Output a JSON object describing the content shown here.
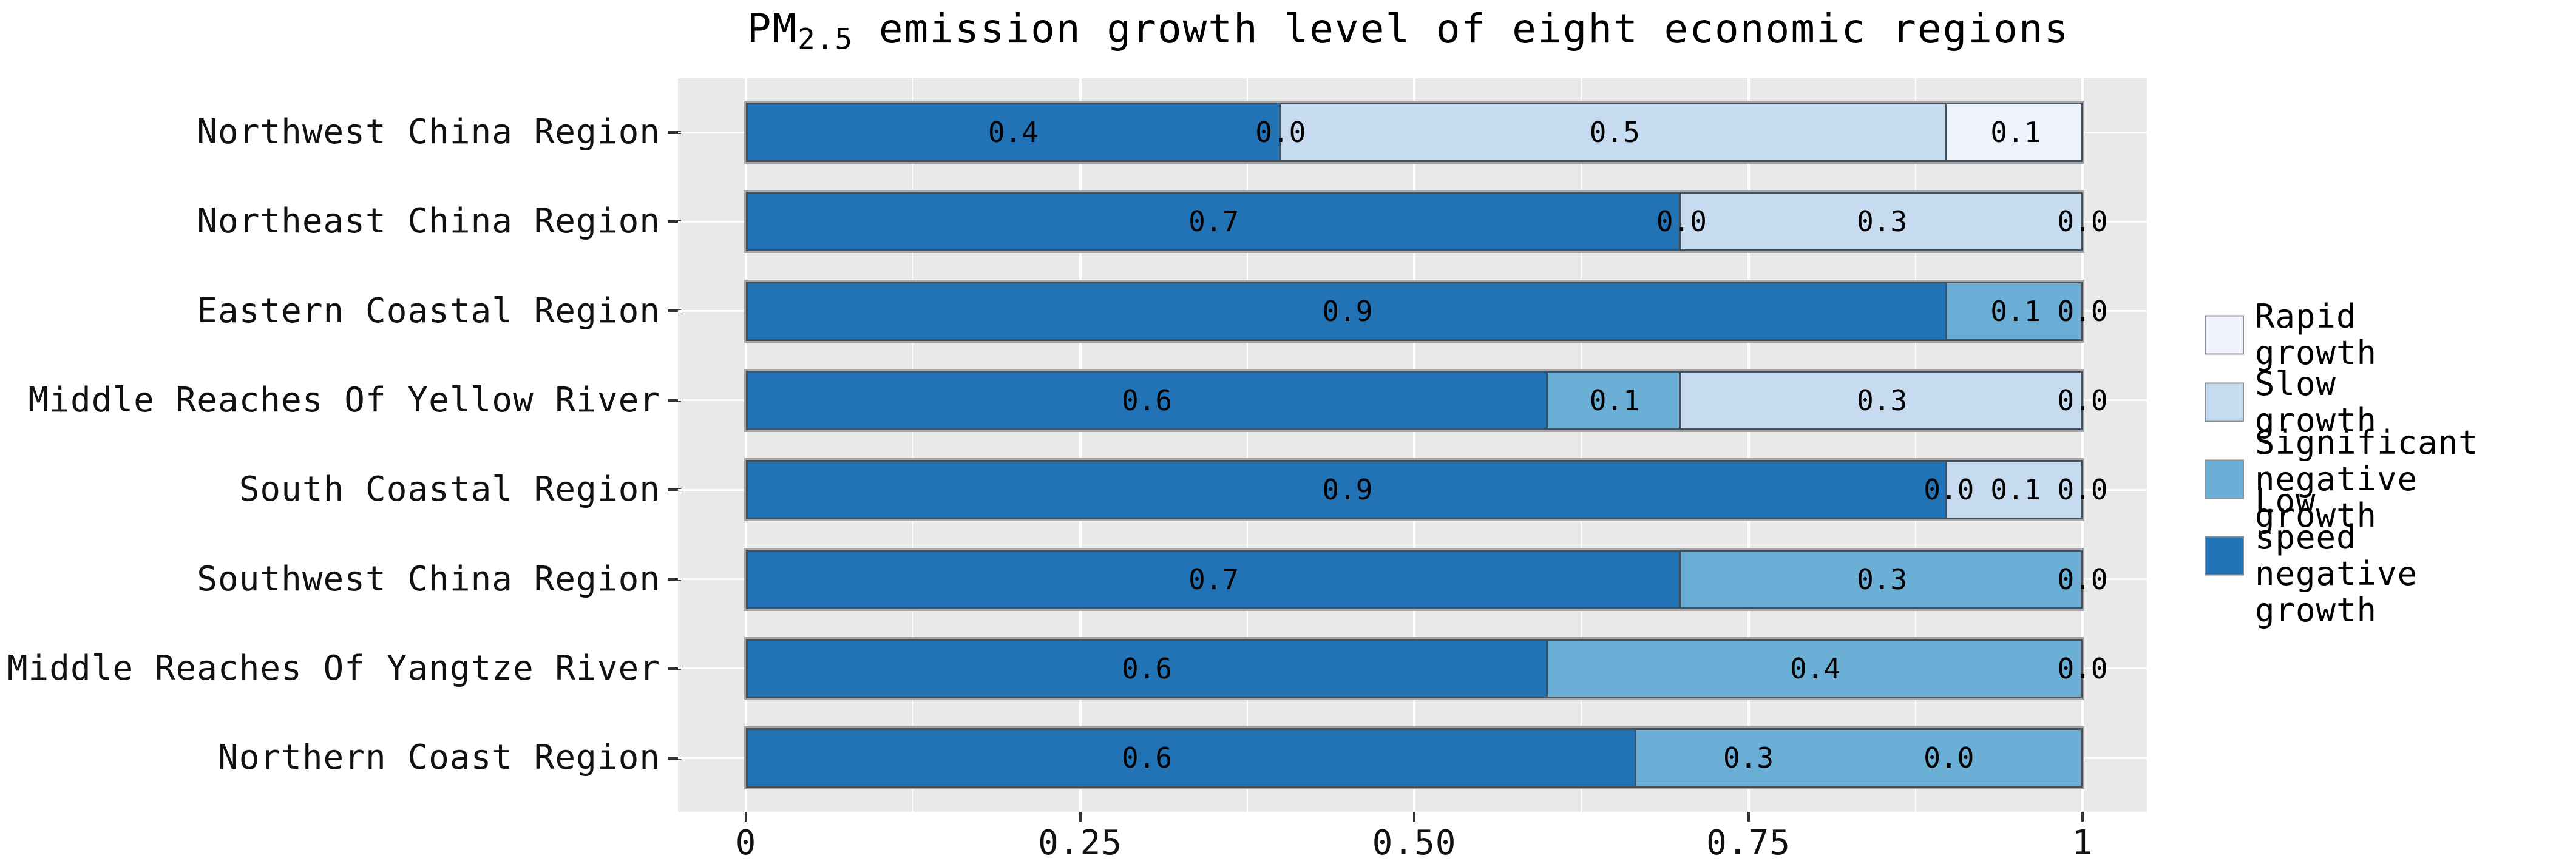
{
  "chart_data": {
    "type": "bar",
    "orientation": "horizontal",
    "stacked": true,
    "normalized_to_fill": true,
    "title": {
      "prefix": "PM",
      "subscript": "2.5",
      "rest": " emission growth level of eight economic regions"
    },
    "xlabel": "",
    "ylabel": "",
    "xlim": [
      0,
      1
    ],
    "grid": true,
    "panel_background": "#e9e9e9",
    "gridline_color": "#ffffff",
    "x_axis": {
      "ticks": [
        {
          "value": 0,
          "label": "0"
        },
        {
          "value": 0.25,
          "label": "0.25"
        },
        {
          "value": 0.5,
          "label": "0.50"
        },
        {
          "value": 0.75,
          "label": "0.75"
        },
        {
          "value": 1,
          "label": "1"
        }
      ],
      "minor_ticks": [
        0.125,
        0.375,
        0.625,
        0.875
      ]
    },
    "series": [
      {
        "name": "Low speed negative growth",
        "color": "#2272B6"
      },
      {
        "name": "Significant negative growth",
        "color": "#6BAED6"
      },
      {
        "name": "Slow growth",
        "color": "#C6DBEF"
      },
      {
        "name": "Rapid growth",
        "color": "#EDF2FB"
      }
    ],
    "categories": [
      "Northwest China Region",
      "Northeast China Region",
      "Eastern Coastal Region",
      "Middle Reaches Of Yellow River",
      "South Coastal Region",
      "Southwest China Region",
      "Middle Reaches Of Yangtze River",
      "Northern Coast Region"
    ],
    "rows": [
      {
        "category": "Northwest China Region",
        "values": [
          0.4,
          0.0,
          0.5,
          0.1
        ]
      },
      {
        "category": "Northeast China Region",
        "values": [
          0.7,
          0.0,
          0.3,
          0.0
        ]
      },
      {
        "category": "Eastern Coastal Region",
        "values": [
          0.9,
          0.1,
          0.0,
          0.0
        ]
      },
      {
        "category": "Middle Reaches Of Yellow River",
        "values": [
          0.6,
          0.1,
          0.3,
          0.0
        ]
      },
      {
        "category": "South Coastal Region",
        "values": [
          0.9,
          0.0,
          0.1,
          0.0
        ]
      },
      {
        "category": "Southwest China Region",
        "values": [
          0.7,
          0.3,
          0.0,
          0.0
        ]
      },
      {
        "category": "Middle Reaches Of Yangtze River",
        "values": [
          0.6,
          0.4,
          0.0,
          0.0
        ]
      },
      {
        "category": "Northern Coast Region",
        "values": [
          0.6,
          0.3,
          0.0,
          0.0
        ]
      }
    ],
    "legend": {
      "position": "right",
      "items": [
        {
          "label": "Rapid growth",
          "color": "#EDF2FB"
        },
        {
          "label": "Slow growth",
          "color": "#C6DBEF"
        },
        {
          "label": "Significant\nnegative growth",
          "color": "#6BAED6"
        },
        {
          "label": "Low speed\nnegative growth",
          "color": "#2272B6"
        }
      ]
    }
  }
}
